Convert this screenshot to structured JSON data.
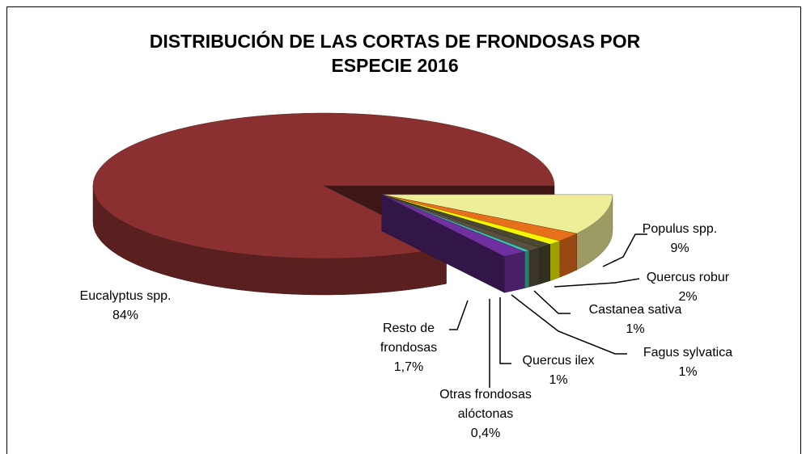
{
  "chart_data": {
    "type": "pie",
    "title": "DISTRIBUCIÓN  DE LAS CORTAS DE FRONDOSAS POR ESPECIE 2016",
    "categories": [
      "Populus spp.",
      "Quercus robur",
      "Castanea sativa",
      "Fagus sylvatica",
      "Quercus ilex",
      "Otras frondosas alóctonas",
      "Resto de frondosas",
      "Eucalyptus spp."
    ],
    "values": [
      9,
      2,
      1,
      1,
      1,
      0.4,
      1.7,
      84
    ],
    "value_labels": [
      "9%",
      "2%",
      "1%",
      "1%",
      "1%",
      "0,4%",
      "1,7%",
      "84%"
    ],
    "colors": [
      "#eeee99",
      "#e8701a",
      "#f5f500",
      "#4a4a30",
      "#5a5040",
      "#40c0b0",
      "#7030a0",
      "#8b3030"
    ]
  }
}
